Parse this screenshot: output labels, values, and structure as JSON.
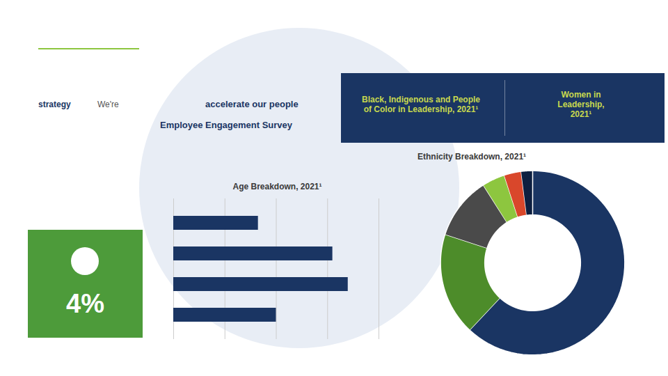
{
  "chart_data": [
    {
      "type": "bar",
      "title": "Age Breakdown, 2021¹",
      "orientation": "horizontal",
      "categories": [
        null,
        null,
        null,
        null
      ],
      "values": [
        33,
        62,
        68,
        40
      ],
      "color": "#1a3563",
      "xlim": [
        0,
        80
      ],
      "xticks": [
        0,
        20,
        40,
        60,
        80
      ],
      "grid": true,
      "tick_labels": false,
      "annotations": [
        "strategy",
        "We're",
        "accelerate our people",
        "Employee Engagement Survey",
        "Black, Indigenous and People\nof Color in Leadership, 2021¹",
        "Women in Leadership,\n2021¹",
        "4%"
      ]
    },
    {
      "type": "pie",
      "title": "Ethnicity Breakdown, 2021¹",
      "values": [
        62,
        18,
        11,
        4,
        3,
        2
      ],
      "colors": [
        "#1a3563",
        "#4d8c2a",
        "#4a4a4a",
        "#8dc63f",
        "#d9472b",
        "#0d1f40"
      ]
    }
  ]
}
